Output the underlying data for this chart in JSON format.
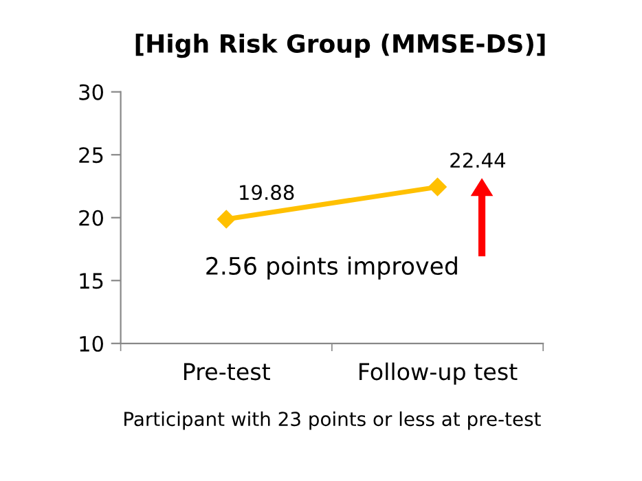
{
  "chart_data": {
    "type": "line",
    "title": "[High Risk Group (MMSE-DS)]",
    "xlabel": "Participant with 23 points or less at pre-test",
    "categories": [
      "Pre-test",
      "Follow-up test"
    ],
    "series": [
      {
        "color": "#ffc000",
        "values": [
          19.88,
          22.44
        ]
      }
    ],
    "data_labels": true,
    "marker": "diamond",
    "line_style": "solid",
    "ylim": [
      10,
      30
    ],
    "yticks": [
      10,
      15,
      20,
      25,
      30
    ],
    "grid": false,
    "legend": false,
    "annotations": [
      "2.56 points improved"
    ]
  }
}
